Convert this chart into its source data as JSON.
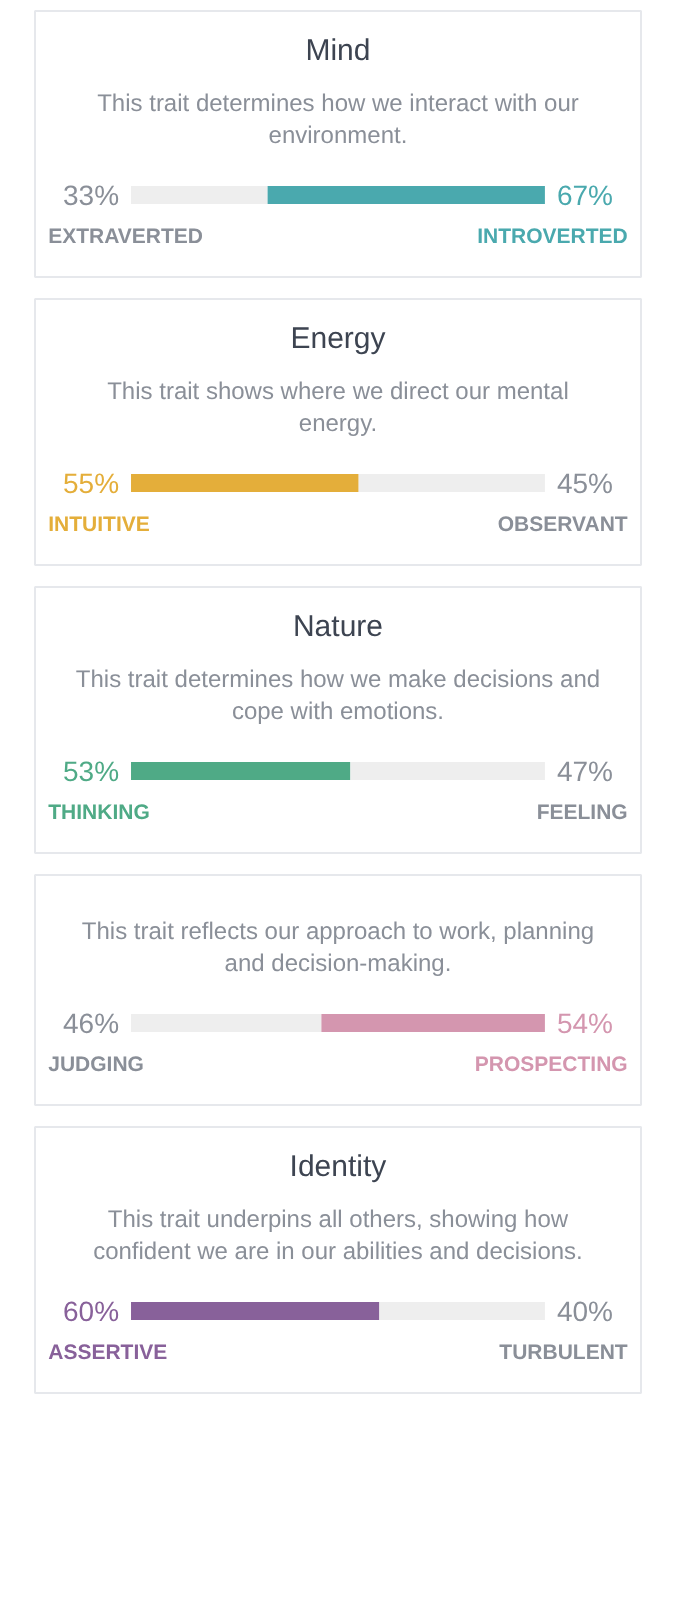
{
  "chart_data": [
    {
      "type": "bar",
      "orientation": "horizontal",
      "stacked": true,
      "title": "Mind",
      "subtitle": "This trait determines how we interact with our environment.",
      "categories": [
        null
      ],
      "series": [
        {
          "name": "EXTRAVERTED",
          "color": "#eeeeee",
          "values": [
            33
          ],
          "value_labels": [
            "33%"
          ]
        },
        {
          "name": "INTROVERTED",
          "color": "#4aa9ae",
          "values": [
            67
          ],
          "value_labels": [
            "67%"
          ]
        }
      ]
    },
    {
      "type": "bar",
      "orientation": "horizontal",
      "stacked": true,
      "title": "Energy",
      "subtitle": "This trait shows where we direct our mental energy.",
      "categories": [
        null
      ],
      "series": [
        {
          "name": "INTUITIVE",
          "color": "#e4ae3a",
          "values": [
            55
          ],
          "value_labels": [
            "55%"
          ]
        },
        {
          "name": "OBSERVANT",
          "color": "#eeeeee",
          "values": [
            45
          ],
          "value_labels": [
            "45%"
          ]
        }
      ]
    },
    {
      "type": "bar",
      "orientation": "horizontal",
      "stacked": true,
      "title": "Nature",
      "subtitle": "This trait determines how we make decisions and cope with emotions.",
      "categories": [
        null
      ],
      "series": [
        {
          "name": "THINKING",
          "color": "#4faa86",
          "values": [
            53
          ],
          "value_labels": [
            "53%"
          ]
        },
        {
          "name": "FEELING",
          "color": "#eeeeee",
          "values": [
            47
          ],
          "value_labels": [
            "47%"
          ]
        }
      ]
    },
    {
      "type": "bar",
      "orientation": "horizontal",
      "stacked": true,
      "subtitle": "This trait reflects our approach to work, planning and decision-making.",
      "categories": [
        null
      ],
      "series": [
        {
          "name": "JUDGING",
          "color": "#eeeeee",
          "values": [
            46
          ],
          "value_labels": [
            "46%"
          ]
        },
        {
          "name": "PROSPECTING",
          "color": "#d496af",
          "values": [
            54
          ],
          "value_labels": [
            "54%"
          ]
        }
      ]
    },
    {
      "type": "bar",
      "orientation": "horizontal",
      "stacked": true,
      "title": "Identity",
      "subtitle": "This trait underpins all others, showing how confident we are in our abilities and decisions.",
      "categories": [
        null
      ],
      "series": [
        {
          "name": "ASSERTIVE",
          "color": "#88619a",
          "values": [
            60
          ],
          "value_labels": [
            "60%"
          ]
        },
        {
          "name": "TURBULENT",
          "color": "#eeeeee",
          "values": [
            40
          ],
          "value_labels": [
            "40%"
          ]
        }
      ]
    }
  ]
}
